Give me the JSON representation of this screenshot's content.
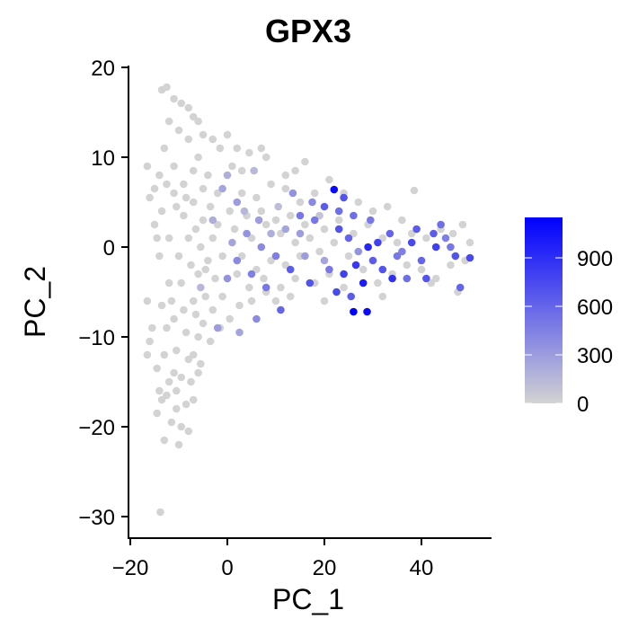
{
  "chart_data": {
    "type": "scatter",
    "title": "GPX3",
    "xlabel": "PC_1",
    "ylabel": "PC_2",
    "xlim": [
      -20,
      55
    ],
    "ylim": [
      -33,
      21
    ],
    "x_ticks": [
      -20,
      0,
      20,
      40
    ],
    "x_tick_labels": [
      "−20",
      "0",
      "20",
      "40"
    ],
    "y_ticks": [
      20,
      10,
      0,
      -10,
      -20,
      -30
    ],
    "y_tick_labels": [
      "20",
      "10",
      "0",
      "−10",
      "−20",
      "−30"
    ],
    "grid": false,
    "color_scale": {
      "min": 0,
      "max": 1150,
      "low_color": "#d3d3d3",
      "high_color": "#0000ff",
      "ticks": [
        0,
        300,
        600,
        900
      ],
      "tick_labels": [
        "0",
        "300",
        "600",
        "900"
      ],
      "placement": "right"
    },
    "points": [
      {
        "x": -13.8,
        "y": -29.5,
        "v": 0
      },
      {
        "x": -13.5,
        "y": 17.5,
        "v": 0
      },
      {
        "x": -12.5,
        "y": 17.8,
        "v": 0
      },
      {
        "x": -11.0,
        "y": 16.5,
        "v": 0
      },
      {
        "x": -9.5,
        "y": 16.0,
        "v": 0
      },
      {
        "x": -8.0,
        "y": 15.5,
        "v": 0
      },
      {
        "x": -7.0,
        "y": 14.5,
        "v": 0
      },
      {
        "x": -6.0,
        "y": 14.0,
        "v": 0
      },
      {
        "x": -5.0,
        "y": 12.5,
        "v": 0
      },
      {
        "x": -3.0,
        "y": 12.0,
        "v": 0
      },
      {
        "x": 0.0,
        "y": 12.5,
        "v": 0
      },
      {
        "x": -1.5,
        "y": 11.0,
        "v": 0
      },
      {
        "x": 2.0,
        "y": 11.0,
        "v": 0
      },
      {
        "x": 4.5,
        "y": 10.5,
        "v": 0
      },
      {
        "x": 7.0,
        "y": 11.0,
        "v": 0
      },
      {
        "x": 8.0,
        "y": 10.0,
        "v": 0
      },
      {
        "x": 16.0,
        "y": 9.5,
        "v": 0
      },
      {
        "x": 14.0,
        "y": 8.5,
        "v": 0
      },
      {
        "x": 12.0,
        "y": 8.0,
        "v": 0
      },
      {
        "x": -16.5,
        "y": 9.0,
        "v": 0
      },
      {
        "x": -16.0,
        "y": 5.5,
        "v": 0
      },
      {
        "x": -15.0,
        "y": 2.5,
        "v": 0
      },
      {
        "x": -14.0,
        "y": -1.0,
        "v": 0
      },
      {
        "x": -16.5,
        "y": -6.0,
        "v": 0
      },
      {
        "x": -15.5,
        "y": -9.0,
        "v": 0
      },
      {
        "x": -16.5,
        "y": -12.0,
        "v": 0
      },
      {
        "x": -16.0,
        "y": -10.5,
        "v": 0
      },
      {
        "x": -14.5,
        "y": -13.5,
        "v": 0
      },
      {
        "x": -14.0,
        "y": -16.0,
        "v": 0
      },
      {
        "x": -14.5,
        "y": -18.5,
        "v": 0
      },
      {
        "x": -13.5,
        "y": -17.0,
        "v": 0
      },
      {
        "x": -13.0,
        "y": -21.5,
        "v": 0
      },
      {
        "x": -11.5,
        "y": -19.5,
        "v": 0
      },
      {
        "x": -10.5,
        "y": -18.0,
        "v": 0
      },
      {
        "x": -9.5,
        "y": -20.0,
        "v": 0
      },
      {
        "x": -10.0,
        "y": -22.0,
        "v": 0
      },
      {
        "x": -8.0,
        "y": -20.5,
        "v": 0
      },
      {
        "x": -8.5,
        "y": -17.5,
        "v": 0
      },
      {
        "x": -7.5,
        "y": -15.0,
        "v": 0
      },
      {
        "x": -12.0,
        "y": -15.0,
        "v": 0
      },
      {
        "x": -11.0,
        "y": -14.0,
        "v": 0
      },
      {
        "x": -13.0,
        "y": -12.0,
        "v": 0
      },
      {
        "x": -7.0,
        "y": -12.0,
        "v": 0
      },
      {
        "x": -5.5,
        "y": -13.0,
        "v": 0
      },
      {
        "x": -6.0,
        "y": -10.0,
        "v": 0
      },
      {
        "x": -3.5,
        "y": -10.5,
        "v": 0
      },
      {
        "x": -1.5,
        "y": -9.0,
        "v": 0
      },
      {
        "x": 0.5,
        "y": -8.0,
        "v": 0
      },
      {
        "x": 2.5,
        "y": -6.5,
        "v": 0
      },
      {
        "x": 5.0,
        "y": -6.0,
        "v": 0
      },
      {
        "x": 8.0,
        "y": -5.0,
        "v": 0
      },
      {
        "x": 11.0,
        "y": -4.5,
        "v": 0
      },
      {
        "x": 14.0,
        "y": -3.5,
        "v": 0
      },
      {
        "x": 18.0,
        "y": -4.0,
        "v": 0
      },
      {
        "x": 21.0,
        "y": -3.0,
        "v": 0
      },
      {
        "x": 24.0,
        "y": -4.5,
        "v": 0
      },
      {
        "x": 28.0,
        "y": -2.5,
        "v": 0
      },
      {
        "x": 31.0,
        "y": -4.0,
        "v": 0
      },
      {
        "x": 34.0,
        "y": -3.0,
        "v": 0
      },
      {
        "x": 37.0,
        "y": -2.0,
        "v": 0
      },
      {
        "x": 40.0,
        "y": -2.5,
        "v": 0
      },
      {
        "x": 43.0,
        "y": -3.5,
        "v": 0
      },
      {
        "x": 46.0,
        "y": -2.0,
        "v": 0
      },
      {
        "x": 49.0,
        "y": -1.5,
        "v": 0
      },
      {
        "x": 48.5,
        "y": 2.5,
        "v": 0
      },
      {
        "x": 46.5,
        "y": 1.5,
        "v": 0
      },
      {
        "x": 44.0,
        "y": 2.0,
        "v": 0
      },
      {
        "x": 41.0,
        "y": 1.0,
        "v": 0
      },
      {
        "x": 38.0,
        "y": 1.5,
        "v": 0
      },
      {
        "x": 35.0,
        "y": 0.5,
        "v": 0
      },
      {
        "x": 32.0,
        "y": 1.0,
        "v": 0
      },
      {
        "x": 29.0,
        "y": 2.5,
        "v": 0
      },
      {
        "x": 26.0,
        "y": 1.5,
        "v": 0
      },
      {
        "x": 23.0,
        "y": 3.0,
        "v": 0
      },
      {
        "x": 20.0,
        "y": 2.0,
        "v": 0
      },
      {
        "x": 17.0,
        "y": 1.0,
        "v": 0
      },
      {
        "x": 14.0,
        "y": 0.5,
        "v": 0
      },
      {
        "x": 11.0,
        "y": 1.5,
        "v": 0
      },
      {
        "x": 8.0,
        "y": 2.5,
        "v": 0
      },
      {
        "x": 5.0,
        "y": 1.0,
        "v": 0
      },
      {
        "x": 3.0,
        "y": -1.0,
        "v": 0
      },
      {
        "x": 6.0,
        "y": -2.5,
        "v": 0
      },
      {
        "x": 9.0,
        "y": -1.5,
        "v": 0
      },
      {
        "x": 12.0,
        "y": -2.0,
        "v": 0
      },
      {
        "x": 15.0,
        "y": -1.0,
        "v": 0
      },
      {
        "x": 19.0,
        "y": -0.5,
        "v": 0
      },
      {
        "x": 22.0,
        "y": 0.5,
        "v": 0
      },
      {
        "x": 25.0,
        "y": -1.0,
        "v": 0
      },
      {
        "x": 33.0,
        "y": 4.5,
        "v": 0
      },
      {
        "x": 38.5,
        "y": 6.3,
        "v": 0
      },
      {
        "x": 30.0,
        "y": 4.0,
        "v": 0
      },
      {
        "x": 27.0,
        "y": 5.0,
        "v": 0
      },
      {
        "x": 24.0,
        "y": 6.0,
        "v": 0
      },
      {
        "x": 21.0,
        "y": 7.5,
        "v": 0
      },
      {
        "x": 18.0,
        "y": 6.0,
        "v": 0
      },
      {
        "x": 15.0,
        "y": 5.0,
        "v": 0
      },
      {
        "x": 12.0,
        "y": 6.5,
        "v": 0
      },
      {
        "x": 9.0,
        "y": 7.0,
        "v": 0
      },
      {
        "x": 6.0,
        "y": 5.5,
        "v": 0
      },
      {
        "x": 3.0,
        "y": 6.0,
        "v": 0
      },
      {
        "x": 0.5,
        "y": 4.0,
        "v": 0
      },
      {
        "x": -2.0,
        "y": 6.0,
        "v": 0
      },
      {
        "x": -4.0,
        "y": 8.0,
        "v": 0
      },
      {
        "x": -6.0,
        "y": 10.0,
        "v": 0
      },
      {
        "x": -8.0,
        "y": 12.0,
        "v": 0
      },
      {
        "x": -10.0,
        "y": 13.0,
        "v": 0
      },
      {
        "x": -12.0,
        "y": 14.0,
        "v": 0
      },
      {
        "x": -13.0,
        "y": 11.0,
        "v": 0
      },
      {
        "x": -11.0,
        "y": 9.0,
        "v": 0
      },
      {
        "x": -9.0,
        "y": 7.0,
        "v": 0
      },
      {
        "x": -7.0,
        "y": 5.0,
        "v": 0
      },
      {
        "x": -5.0,
        "y": 3.0,
        "v": 0
      },
      {
        "x": -3.0,
        "y": 1.0,
        "v": 0
      },
      {
        "x": -1.0,
        "y": -1.0,
        "v": 0
      },
      {
        "x": -2.5,
        "y": -3.5,
        "v": 0
      },
      {
        "x": -4.5,
        "y": -5.5,
        "v": 0
      },
      {
        "x": -6.5,
        "y": -7.5,
        "v": 0
      },
      {
        "x": -8.5,
        "y": -9.5,
        "v": 0
      },
      {
        "x": -10.5,
        "y": -11.5,
        "v": 0
      },
      {
        "x": -12.5,
        "y": -9.0,
        "v": 0
      },
      {
        "x": -11.5,
        "y": -6.0,
        "v": 0
      },
      {
        "x": -9.5,
        "y": -4.0,
        "v": 0
      },
      {
        "x": -7.5,
        "y": -2.0,
        "v": 0
      },
      {
        "x": -5.5,
        "y": 0.0,
        "v": 0
      },
      {
        "x": -13.5,
        "y": 4.0,
        "v": 0
      },
      {
        "x": -12.0,
        "y": 1.0,
        "v": 0
      },
      {
        "x": -10.0,
        "y": -1.0,
        "v": 0
      },
      {
        "x": -8.0,
        "y": 1.0,
        "v": 0
      },
      {
        "x": -6.0,
        "y": -3.0,
        "v": 0
      },
      {
        "x": -4.0,
        "y": -1.5,
        "v": 0
      },
      {
        "x": -2.0,
        "y": 2.5,
        "v": 0
      },
      {
        "x": -9.0,
        "y": 3.5,
        "v": 0
      },
      {
        "x": -11.0,
        "y": 6.0,
        "v": 0
      },
      {
        "x": -7.0,
        "y": 8.5,
        "v": 0
      },
      {
        "x": -5.0,
        "y": 6.5,
        "v": 0
      },
      {
        "x": -3.5,
        "y": 4.5,
        "v": 0
      },
      {
        "x": 1.5,
        "y": 2.0,
        "v": 0
      },
      {
        "x": 4.0,
        "y": 3.5,
        "v": 0
      },
      {
        "x": 7.0,
        "y": 4.0,
        "v": 0
      },
      {
        "x": 10.0,
        "y": 3.0,
        "v": 0
      },
      {
        "x": 13.0,
        "y": 3.5,
        "v": 0
      },
      {
        "x": 16.0,
        "y": 2.5,
        "v": 0
      },
      {
        "x": 2.0,
        "y": -3.0,
        "v": 0
      },
      {
        "x": 4.5,
        "y": -4.5,
        "v": 0
      },
      {
        "x": 7.5,
        "y": -3.5,
        "v": 0
      },
      {
        "x": 10.0,
        "y": -6.0,
        "v": 0
      },
      {
        "x": 13.0,
        "y": -5.5,
        "v": 0
      },
      {
        "x": -1.0,
        "y": -5.5,
        "v": 0
      },
      {
        "x": -3.0,
        "y": -7.0,
        "v": 0
      },
      {
        "x": -5.0,
        "y": -8.5,
        "v": 0
      },
      {
        "x": -7.0,
        "y": -6.0,
        "v": 0
      },
      {
        "x": -9.0,
        "y": -7.0,
        "v": 0
      },
      {
        "x": -11.0,
        "y": -8.0,
        "v": 0
      },
      {
        "x": -12.0,
        "y": -4.0,
        "v": 0
      },
      {
        "x": -13.5,
        "y": -6.5,
        "v": 0
      },
      {
        "x": -14.5,
        "y": 1.0,
        "v": 0
      },
      {
        "x": -15.0,
        "y": 6.5,
        "v": 0
      },
      {
        "x": -14.0,
        "y": 8.0,
        "v": 0
      },
      {
        "x": -12.5,
        "y": 7.0,
        "v": 0
      },
      {
        "x": -10.5,
        "y": 4.5,
        "v": 0
      },
      {
        "x": -8.5,
        "y": 5.5,
        "v": 0
      },
      {
        "x": -6.5,
        "y": 2.0,
        "v": 0
      },
      {
        "x": -4.5,
        "y": -2.5,
        "v": 0
      },
      {
        "x": -8.0,
        "y": -12.5,
        "v": 0
      },
      {
        "x": -6.0,
        "y": -14.0,
        "v": 0
      },
      {
        "x": -9.5,
        "y": -14.5,
        "v": 0
      },
      {
        "x": -12.5,
        "y": -16.5,
        "v": 0
      },
      {
        "x": -10.5,
        "y": -16.0,
        "v": 0
      },
      {
        "x": -7.0,
        "y": -17.0,
        "v": 0
      },
      {
        "x": 20.0,
        "y": -6.0,
        "v": 0
      },
      {
        "x": 32.0,
        "y": -5.5,
        "v": 0
      },
      {
        "x": 42.0,
        "y": -4.0,
        "v": 0
      },
      {
        "x": 47.5,
        "y": -5.0,
        "v": 0
      },
      {
        "x": 50.0,
        "y": 0.5,
        "v": 0
      },
      {
        "x": 36.0,
        "y": 3.0,
        "v": 0
      },
      {
        "x": 3.0,
        "y": 8.5,
        "v": 0
      },
      {
        "x": 1.0,
        "y": 9.0,
        "v": 0
      },
      {
        "x": 19.0,
        "y": 3.5,
        "v": 80
      },
      {
        "x": 10.5,
        "y": 4.5,
        "v": 120
      },
      {
        "x": 5.5,
        "y": 8.5,
        "v": 150
      },
      {
        "x": 0.0,
        "y": 8.0,
        "v": 200
      },
      {
        "x": -1.0,
        "y": 6.5,
        "v": 250
      },
      {
        "x": 2.0,
        "y": 5.0,
        "v": 300
      },
      {
        "x": 4.0,
        "y": 1.5,
        "v": 350
      },
      {
        "x": 7.0,
        "y": 0.0,
        "v": 400
      },
      {
        "x": 10.0,
        "y": -1.0,
        "v": 450
      },
      {
        "x": 15.0,
        "y": 1.5,
        "v": 300
      },
      {
        "x": 18.0,
        "y": 3.0,
        "v": 500
      },
      {
        "x": 20.0,
        "y": -1.5,
        "v": 250
      },
      {
        "x": 23.0,
        "y": 4.0,
        "v": 550
      },
      {
        "x": 25.0,
        "y": 1.0,
        "v": 600
      },
      {
        "x": 27.0,
        "y": -0.5,
        "v": 350
      },
      {
        "x": 30.0,
        "y": -1.5,
        "v": 650
      },
      {
        "x": 32.0,
        "y": -2.5,
        "v": 700
      },
      {
        "x": 35.0,
        "y": -1.0,
        "v": 500
      },
      {
        "x": 38.0,
        "y": 0.5,
        "v": 750
      },
      {
        "x": 40.0,
        "y": -1.5,
        "v": 600
      },
      {
        "x": 43.0,
        "y": 0.0,
        "v": 800
      },
      {
        "x": 45.0,
        "y": 1.0,
        "v": 450
      },
      {
        "x": 47.0,
        "y": -1.0,
        "v": 700
      },
      {
        "x": 50.0,
        "y": -1.2,
        "v": 750
      },
      {
        "x": 22.0,
        "y": 6.4,
        "v": 1100
      },
      {
        "x": 26.0,
        "y": -7.2,
        "v": 1150
      },
      {
        "x": 28.8,
        "y": -7.2,
        "v": 1100
      },
      {
        "x": 28.0,
        "y": -4.0,
        "v": 1000
      },
      {
        "x": 24.0,
        "y": -3.0,
        "v": 800
      },
      {
        "x": 17.0,
        "y": -4.0,
        "v": 700
      },
      {
        "x": 13.0,
        "y": -2.5,
        "v": 650
      },
      {
        "x": 11.0,
        "y": -7.0,
        "v": 600
      },
      {
        "x": 8.0,
        "y": -4.5,
        "v": 500
      },
      {
        "x": 5.0,
        "y": -3.0,
        "v": 450
      },
      {
        "x": 2.0,
        "y": -1.5,
        "v": 400
      },
      {
        "x": 0.0,
        "y": -3.5,
        "v": 350
      },
      {
        "x": -2.0,
        "y": -9.0,
        "v": 300
      },
      {
        "x": 2.5,
        "y": -9.5,
        "v": 250
      },
      {
        "x": 6.0,
        "y": -8.0,
        "v": 400
      },
      {
        "x": 15.0,
        "y": 3.5,
        "v": 500
      },
      {
        "x": 20.0,
        "y": 4.5,
        "v": 650
      },
      {
        "x": 24.0,
        "y": 5.5,
        "v": 700
      },
      {
        "x": 22.5,
        "y": -5.0,
        "v": 750
      },
      {
        "x": 26.5,
        "y": -2.0,
        "v": 850
      },
      {
        "x": 31.0,
        "y": 0.5,
        "v": 800
      },
      {
        "x": 34.0,
        "y": -3.5,
        "v": 900
      },
      {
        "x": 39.0,
        "y": 2.0,
        "v": 650
      },
      {
        "x": 44.0,
        "y": 2.5,
        "v": 550
      },
      {
        "x": 48.0,
        "y": -4.5,
        "v": 600
      },
      {
        "x": 41.0,
        "y": -3.5,
        "v": 700
      },
      {
        "x": 36.0,
        "y": -0.5,
        "v": 450
      },
      {
        "x": 29.0,
        "y": 0.0,
        "v": 950
      },
      {
        "x": 26.0,
        "y": 3.5,
        "v": 550
      },
      {
        "x": 21.0,
        "y": -2.5,
        "v": 500
      },
      {
        "x": 16.0,
        "y": -1.0,
        "v": 300
      },
      {
        "x": 12.0,
        "y": 2.0,
        "v": 250
      },
      {
        "x": 9.0,
        "y": 1.5,
        "v": 200
      },
      {
        "x": 6.5,
        "y": 3.0,
        "v": 300
      },
      {
        "x": 3.5,
        "y": 4.0,
        "v": 150
      },
      {
        "x": -3.0,
        "y": 3.0,
        "v": 200
      },
      {
        "x": -5.5,
        "y": -4.5,
        "v": 150
      },
      {
        "x": 1.0,
        "y": 0.5,
        "v": 250
      },
      {
        "x": 13.5,
        "y": 6.0,
        "v": 350
      },
      {
        "x": 17.5,
        "y": 5.0,
        "v": 400
      },
      {
        "x": 29.5,
        "y": 3.0,
        "v": 500
      },
      {
        "x": 33.5,
        "y": 1.5,
        "v": 600
      },
      {
        "x": 37.0,
        "y": -3.5,
        "v": 550
      },
      {
        "x": 42.5,
        "y": 1.5,
        "v": 650
      },
      {
        "x": 46.0,
        "y": 0.0,
        "v": 500
      },
      {
        "x": 23.0,
        "y": 2.0,
        "v": 700
      },
      {
        "x": 25.5,
        "y": -5.5,
        "v": 650
      }
    ]
  }
}
